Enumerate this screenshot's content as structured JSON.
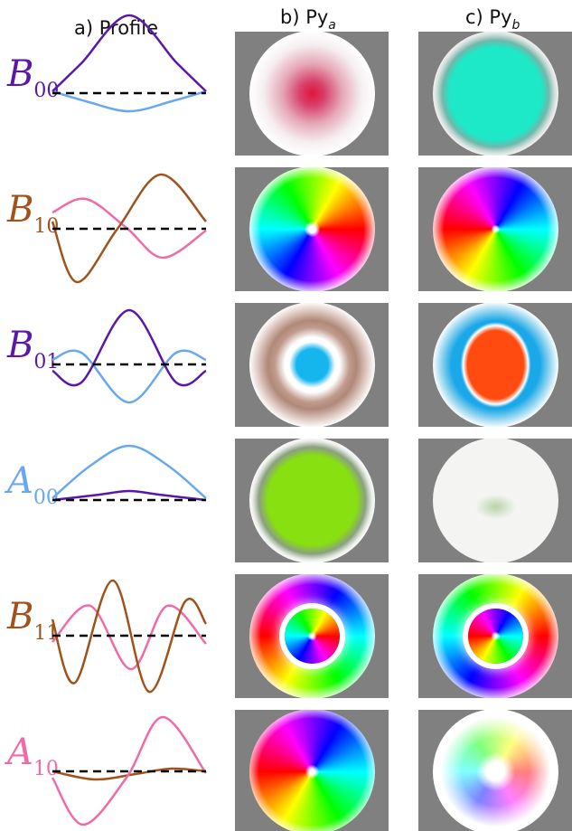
{
  "header": {
    "columns": [
      {
        "label": "a) Profile"
      },
      {
        "label": "b) Py",
        "sub": "a"
      },
      {
        "label": "c) Py",
        "sub": "b"
      }
    ]
  },
  "rows": [
    {
      "symbol": "B",
      "sub": "00",
      "color": "#5a17a8"
    },
    {
      "symbol": "B",
      "sub": "10",
      "color": "#a0521a"
    },
    {
      "symbol": "B",
      "sub": "01",
      "color": "#5a17a8"
    },
    {
      "symbol": "A",
      "sub": "00",
      "color": "#68a8f0"
    },
    {
      "symbol": "B",
      "sub": "11",
      "color": "#a0521a"
    },
    {
      "symbol": "A",
      "sub": "10",
      "color": "#f06aa8"
    }
  ]
}
